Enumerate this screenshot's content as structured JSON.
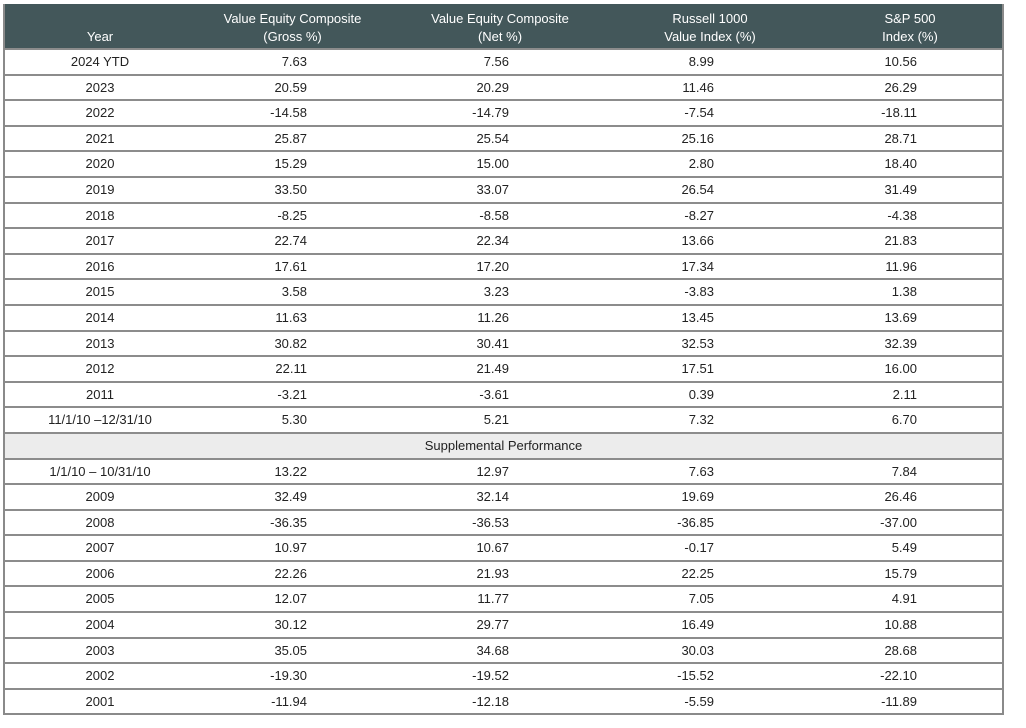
{
  "table": {
    "header": {
      "year": "Year",
      "gross": "Value Equity Composite\n(Gross %)",
      "net": "Value Equity Composite\n(Net %)",
      "russell": "Russell 1000\nValue Index (%)",
      "sp500": "S&P 500\nIndex (%)"
    },
    "colors": {
      "header_bg": "#43575a",
      "supplemental_bg": "#ececec"
    },
    "rows": [
      [
        "2024 YTD",
        "7.63",
        "7.56",
        "8.99",
        "10.56"
      ],
      [
        "2023",
        "20.59",
        "20.29",
        "11.46",
        "26.29"
      ],
      [
        "2022",
        "-14.58",
        "-14.79",
        "-7.54",
        "-18.11"
      ],
      [
        "2021",
        "25.87",
        "25.54",
        "25.16",
        "28.71"
      ],
      [
        "2020",
        "15.29",
        "15.00",
        "2.80",
        "18.40"
      ],
      [
        "2019",
        "33.50",
        "33.07",
        "26.54",
        "31.49"
      ],
      [
        "2018",
        "-8.25",
        "-8.58",
        "-8.27",
        "-4.38"
      ],
      [
        "2017",
        "22.74",
        "22.34",
        "13.66",
        "21.83"
      ],
      [
        "2016",
        "17.61",
        "17.20",
        "17.34",
        "11.96"
      ],
      [
        "2015",
        "3.58",
        "3.23",
        "-3.83",
        "1.38"
      ],
      [
        "2014",
        "11.63",
        "11.26",
        "13.45",
        "13.69"
      ],
      [
        "2013",
        "30.82",
        "30.41",
        "32.53",
        "32.39"
      ],
      [
        "2012",
        "22.11",
        "21.49",
        "17.51",
        "16.00"
      ],
      [
        "2011",
        "-3.21",
        "-3.61",
        "0.39",
        "2.11"
      ],
      [
        "11/1/10 –12/31/10",
        "5.30",
        "5.21",
        "7.32",
        "6.70"
      ]
    ],
    "supplemental_label": "Supplemental Performance",
    "supplemental_rows": [
      [
        "1/1/10 – 10/31/10",
        "13.22",
        "12.97",
        "7.63",
        "7.84"
      ],
      [
        "2009",
        "32.49",
        "32.14",
        "19.69",
        "26.46"
      ],
      [
        "2008",
        "-36.35",
        "-36.53",
        "-36.85",
        "-37.00"
      ],
      [
        "2007",
        "10.97",
        "10.67",
        "-0.17",
        "5.49"
      ],
      [
        "2006",
        "22.26",
        "21.93",
        "22.25",
        "15.79"
      ],
      [
        "2005",
        "12.07",
        "11.77",
        "7.05",
        "4.91"
      ],
      [
        "2004",
        "30.12",
        "29.77",
        "16.49",
        "10.88"
      ],
      [
        "2003",
        "35.05",
        "34.68",
        "30.03",
        "28.68"
      ],
      [
        "2002",
        "-19.30",
        "-19.52",
        "-15.52",
        "-22.10"
      ],
      [
        "2001",
        "-11.94",
        "-12.18",
        "-5.59",
        "-11.89"
      ]
    ]
  }
}
